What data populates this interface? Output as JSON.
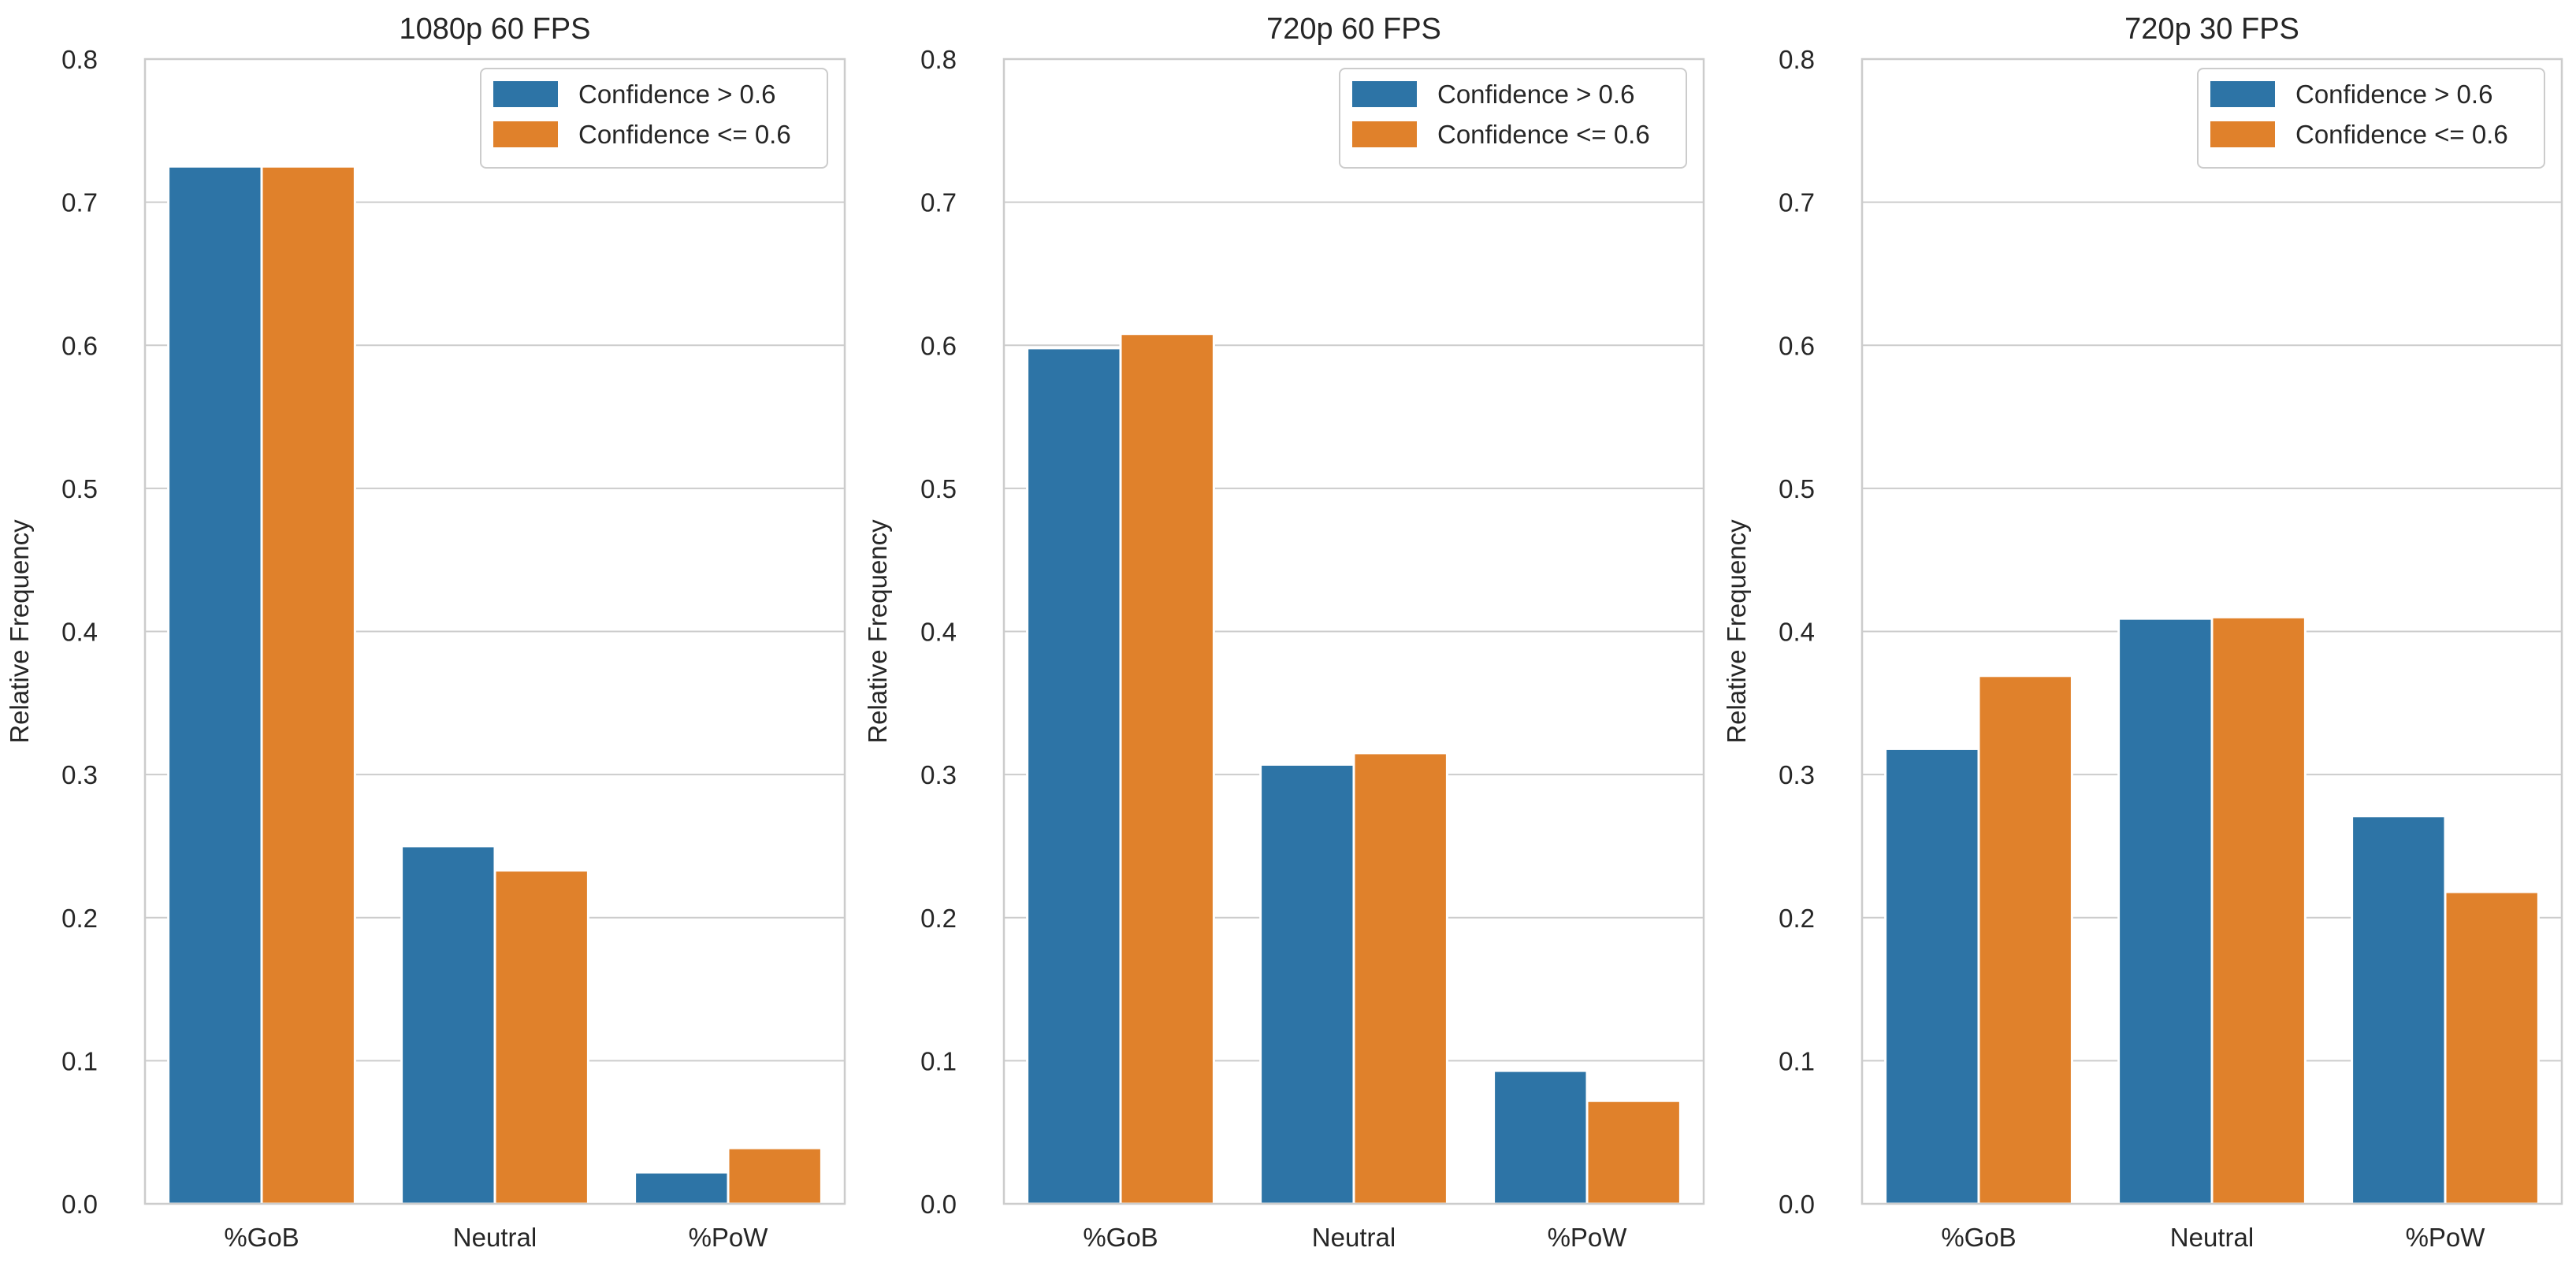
{
  "chart_data": [
    {
      "type": "bar",
      "title": "1080p 60 FPS",
      "xlabel": "",
      "ylabel": "Relative Frequency",
      "categories": [
        "%GoB",
        "Neutral",
        "%PoW"
      ],
      "ylim": [
        0,
        0.8
      ],
      "yticks": [
        0.0,
        0.1,
        0.2,
        0.3,
        0.4,
        0.5,
        0.6,
        0.7,
        0.8
      ],
      "ytick_labels": [
        "0.0",
        "0.1",
        "0.2",
        "0.3",
        "0.4",
        "0.5",
        "0.6",
        "0.7",
        "0.8"
      ],
      "grid": true,
      "legend_position": "top-right",
      "series": [
        {
          "name": "Confidence > 0.6",
          "color": "#2d74a6",
          "values": [
            0.725,
            0.25,
            0.022
          ]
        },
        {
          "name": "Confidence <= 0.6",
          "color": "#e0812b",
          "values": [
            0.725,
            0.233,
            0.039
          ]
        }
      ]
    },
    {
      "type": "bar",
      "title": "720p 60 FPS",
      "xlabel": "",
      "ylabel": "Relative Frequency",
      "categories": [
        "%GoB",
        "Neutral",
        "%PoW"
      ],
      "ylim": [
        0,
        0.8
      ],
      "yticks": [
        0.0,
        0.1,
        0.2,
        0.3,
        0.4,
        0.5,
        0.6,
        0.7,
        0.8
      ],
      "ytick_labels": [
        "0.0",
        "0.1",
        "0.2",
        "0.3",
        "0.4",
        "0.5",
        "0.6",
        "0.7",
        "0.8"
      ],
      "grid": true,
      "legend_position": "top-right",
      "series": [
        {
          "name": "Confidence > 0.6",
          "color": "#2d74a6",
          "values": [
            0.598,
            0.307,
            0.093
          ]
        },
        {
          "name": "Confidence <= 0.6",
          "color": "#e0812b",
          "values": [
            0.608,
            0.315,
            0.072
          ]
        }
      ]
    },
    {
      "type": "bar",
      "title": "720p 30 FPS",
      "xlabel": "",
      "ylabel": "Relative Frequency",
      "categories": [
        "%GoB",
        "Neutral",
        "%PoW"
      ],
      "ylim": [
        0,
        0.8
      ],
      "yticks": [
        0.0,
        0.1,
        0.2,
        0.3,
        0.4,
        0.5,
        0.6,
        0.7,
        0.8
      ],
      "ytick_labels": [
        "0.0",
        "0.1",
        "0.2",
        "0.3",
        "0.4",
        "0.5",
        "0.6",
        "0.7",
        "0.8"
      ],
      "grid": true,
      "legend_position": "top-right",
      "series": [
        {
          "name": "Confidence > 0.6",
          "color": "#2d74a6",
          "values": [
            0.318,
            0.409,
            0.271
          ]
        },
        {
          "name": "Confidence <= 0.6",
          "color": "#e0812b",
          "values": [
            0.369,
            0.41,
            0.218
          ]
        }
      ]
    }
  ]
}
